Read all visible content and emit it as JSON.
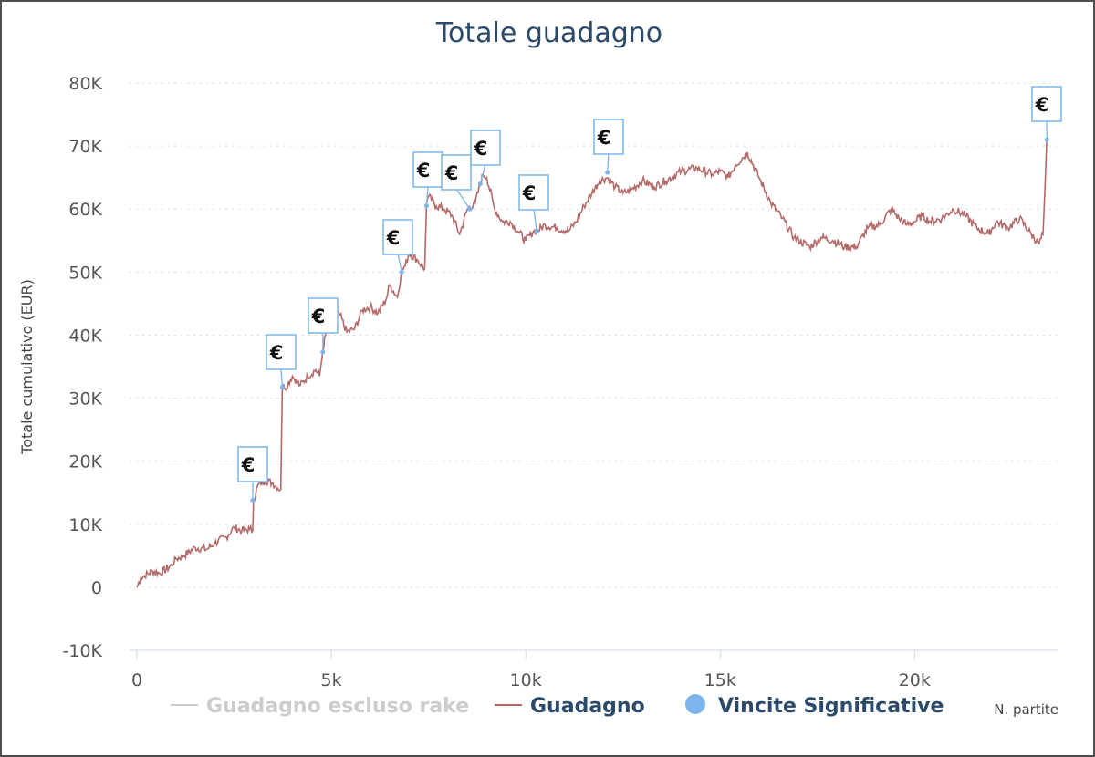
{
  "chart_data": {
    "type": "line",
    "title": "Totale guadagno",
    "xlabel": "N. partite",
    "ylabel": "Totale cumulativo (EUR)",
    "xlim": [
      0,
      23700
    ],
    "ylim": [
      -10000,
      80000
    ],
    "x_ticks": [
      0,
      5000,
      10000,
      15000,
      20000
    ],
    "x_tick_labels": [
      "0",
      "5k",
      "10k",
      "15k",
      "20k"
    ],
    "y_ticks": [
      -10000,
      0,
      10000,
      20000,
      30000,
      40000,
      50000,
      60000,
      70000,
      80000
    ],
    "y_tick_labels": [
      "-10K",
      "0",
      "10K",
      "20K",
      "30K",
      "40K",
      "50K",
      "60K",
      "70K",
      "80K"
    ],
    "grid": true,
    "legend_position": "bottom-center",
    "series": [
      {
        "name": "Guadagno escluso rake",
        "visible": false,
        "color": "#cccccc",
        "x": [],
        "y": []
      },
      {
        "name": "Guadagno",
        "color": "#b56a6a",
        "x": [
          0,
          100,
          200,
          400,
          600,
          900,
          1000,
          1200,
          1500,
          1800,
          2000,
          2300,
          2500,
          2700,
          2900,
          2980,
          3000,
          3100,
          3300,
          3500,
          3700,
          3740,
          3800,
          4000,
          4200,
          4400,
          4600,
          4700,
          4780,
          4850,
          5000,
          5200,
          5400,
          5600,
          5800,
          6000,
          6200,
          6400,
          6500,
          6700,
          6800,
          6900,
          7000,
          7200,
          7400,
          7450,
          7500,
          7700,
          7900,
          8100,
          8300,
          8500,
          8700,
          8900,
          9000,
          9200,
          9400,
          9600,
          9800,
          10000,
          10200,
          10300,
          10500,
          10800,
          11100,
          11300,
          11500,
          11700,
          11900,
          12100,
          12300,
          12500,
          12700,
          13000,
          13300,
          13600,
          14000,
          14400,
          14800,
          15000,
          15200,
          15400,
          15700,
          16000,
          16300,
          16600,
          16900,
          17300,
          17600,
          17900,
          18200,
          18500,
          18800,
          19100,
          19400,
          19600,
          19800,
          20000,
          20200,
          20400,
          20700,
          21000,
          21300,
          21600,
          21900,
          22100,
          22400,
          22700,
          23000,
          23200,
          23300,
          23350,
          23400
        ],
        "y": [
          0,
          1500,
          1800,
          2600,
          2200,
          3500,
          4500,
          5000,
          6300,
          6000,
          7000,
          8000,
          9500,
          9000,
          9200,
          9000,
          13800,
          16000,
          17000,
          16500,
          15500,
          32000,
          31500,
          33500,
          32000,
          33500,
          34500,
          33500,
          37500,
          40000,
          42000,
          43500,
          40500,
          41000,
          44000,
          44500,
          43500,
          45500,
          48000,
          46000,
          50000,
          51000,
          53000,
          52000,
          50500,
          61000,
          62000,
          60500,
          60000,
          59000,
          56000,
          60000,
          61000,
          65500,
          65000,
          60000,
          58000,
          58000,
          56500,
          55000,
          56500,
          56500,
          57500,
          57000,
          56500,
          58000,
          60500,
          62500,
          64500,
          65000,
          63500,
          62500,
          63000,
          64500,
          63500,
          64500,
          66000,
          66500,
          65500,
          66000,
          65000,
          67000,
          69000,
          65000,
          61000,
          58500,
          55500,
          54000,
          55500,
          55000,
          54000,
          54000,
          57000,
          57500,
          60000,
          58500,
          57500,
          58000,
          59000,
          58000,
          58500,
          60000,
          59000,
          57000,
          56000,
          58000,
          57000,
          58500,
          56000,
          54500,
          56000,
          63000,
          71000
        ]
      },
      {
        "name": "Vincite Significative",
        "color": "#7cb5ec",
        "marker": "€",
        "x": [
          2980,
          3740,
          4780,
          6810,
          7450,
          8560,
          8830,
          10280,
          12100,
          23400
        ],
        "y": [
          13800,
          31700,
          37300,
          50000,
          60500,
          60000,
          64000,
          56500,
          65800,
          71000
        ]
      }
    ]
  }
}
